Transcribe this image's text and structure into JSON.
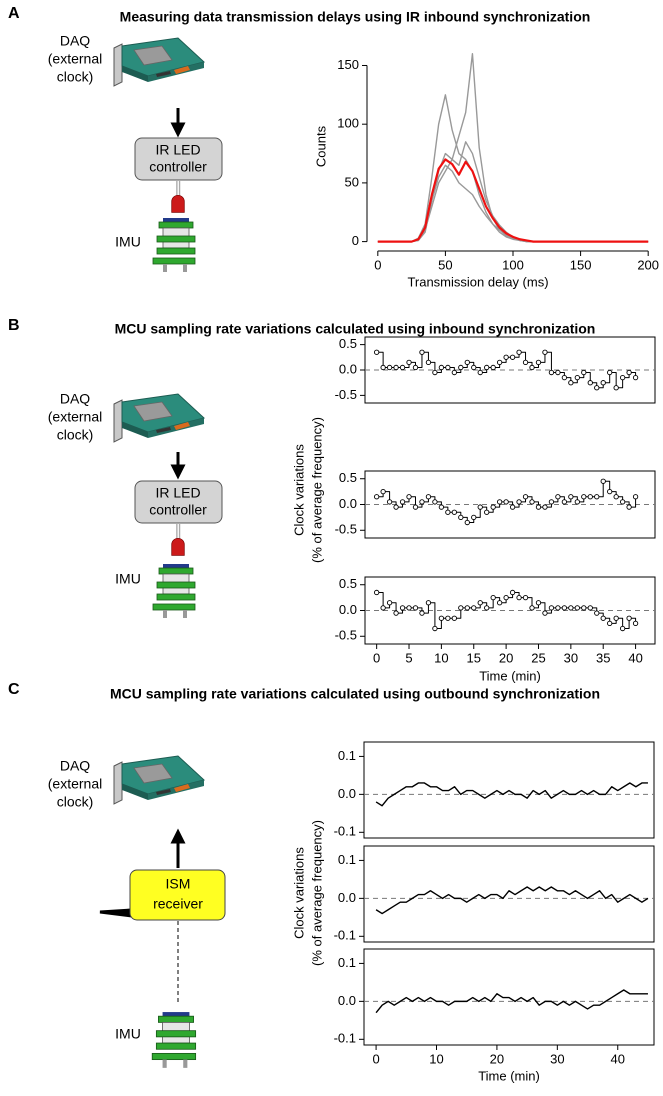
{
  "panels": [
    {
      "letter": "A",
      "title": "Measuring data transmission delays using IR inbound synchronization",
      "daq_lines": [
        "DAQ",
        "(external",
        "clock)"
      ],
      "device_lines": [
        "IR LED",
        "controller"
      ],
      "imu": "IMU"
    },
    {
      "letter": "B",
      "title": "MCU sampling rate variations calculated using inbound synchronization",
      "daq_lines": [
        "DAQ",
        "(external",
        "clock)"
      ],
      "device_lines": [
        "IR LED",
        "controller"
      ],
      "imu": "IMU",
      "ylabel_lines": [
        "Clock variations",
        "(% of average frequency)"
      ]
    },
    {
      "letter": "C",
      "title": "MCU sampling rate variations calculated using outbound synchronization",
      "daq_lines": [
        "DAQ",
        "(external",
        "clock)"
      ],
      "device_lines": [
        "ISM",
        "receiver"
      ],
      "imu": "IMU",
      "ylabel_lines": [
        "Clock variations",
        "(% of average frequency)"
      ]
    }
  ],
  "chart_data": [
    {
      "type": "line",
      "frame": "axes",
      "xlabel": "Transmission delay (ms)",
      "ylabel": "Counts",
      "x": [
        0,
        5,
        10,
        15,
        20,
        25,
        30,
        35,
        40,
        45,
        50,
        55,
        60,
        65,
        70,
        75,
        80,
        85,
        90,
        95,
        100,
        105,
        110,
        115,
        120,
        125,
        130,
        135,
        140,
        145,
        150,
        155,
        160,
        165,
        170,
        175,
        180,
        185,
        190,
        195,
        200
      ],
      "xlim": [
        -8,
        208
      ],
      "ylim": [
        -8,
        170
      ],
      "xticks": [
        0,
        50,
        100,
        150,
        200
      ],
      "yticks": [
        0,
        50,
        100,
        150
      ],
      "series": [
        {
          "color": "#999999",
          "values": [
            0,
            0,
            0,
            0,
            0,
            0,
            1,
            8,
            35,
            60,
            75,
            70,
            90,
            110,
            160,
            80,
            40,
            20,
            10,
            5,
            3,
            1,
            0,
            0,
            0,
            0,
            0,
            0,
            0,
            0,
            0,
            0,
            0,
            0,
            0,
            0,
            0,
            0,
            0,
            0,
            0
          ]
        },
        {
          "color": "#999999",
          "values": [
            0,
            0,
            0,
            0,
            0,
            0,
            3,
            15,
            55,
            100,
            125,
            95,
            75,
            70,
            60,
            40,
            25,
            15,
            8,
            4,
            2,
            1,
            0,
            0,
            0,
            0,
            0,
            0,
            0,
            0,
            0,
            0,
            0,
            0,
            0,
            0,
            0,
            0,
            0,
            0,
            0
          ]
        },
        {
          "color": "#999999",
          "values": [
            0,
            0,
            0,
            0,
            0,
            0,
            1,
            10,
            30,
            50,
            60,
            70,
            65,
            85,
            75,
            55,
            35,
            22,
            14,
            8,
            4,
            2,
            0,
            0,
            0,
            0,
            0,
            0,
            0,
            0,
            0,
            0,
            0,
            0,
            0,
            0,
            0,
            0,
            0,
            0,
            0
          ]
        },
        {
          "color": "#999999",
          "values": [
            0,
            0,
            0,
            0,
            0,
            0,
            2,
            10,
            35,
            55,
            65,
            60,
            50,
            45,
            40,
            30,
            22,
            15,
            10,
            6,
            3,
            1,
            0,
            0,
            0,
            0,
            0,
            0,
            0,
            0,
            0,
            0,
            0,
            0,
            0,
            0,
            0,
            0,
            0,
            0,
            0
          ]
        },
        {
          "color": "#ee1111",
          "values": [
            0,
            0,
            0,
            0,
            0,
            0,
            2,
            12,
            40,
            62,
            70,
            66,
            57,
            68,
            60,
            45,
            30,
            20,
            12,
            7,
            4,
            2,
            1,
            0,
            0,
            0,
            0,
            0,
            0,
            0,
            0,
            0,
            0,
            0,
            0,
            0,
            0,
            0,
            0,
            0,
            0
          ]
        }
      ]
    },
    {
      "type": "step",
      "frame": "box",
      "markers": true,
      "hline": 0,
      "x": [
        0,
        1,
        2,
        3,
        4,
        5,
        6,
        7,
        8,
        9,
        10,
        11,
        12,
        13,
        14,
        15,
        16,
        17,
        18,
        19,
        20,
        21,
        22,
        23,
        24,
        25,
        26,
        27,
        28,
        29,
        30,
        31,
        32,
        33,
        34,
        35,
        36,
        37,
        38,
        39,
        40
      ],
      "xlim": [
        -1.8,
        43
      ],
      "ylim": [
        -0.65,
        0.65
      ],
      "yticks": [
        -0.5,
        {
          "value": 0,
          "label": "0.0"
        },
        0.5
      ],
      "series": [
        {
          "color": "#000000",
          "values": [
            0.35,
            0.05,
            0.05,
            0.05,
            0.05,
            0.15,
            0.05,
            0.35,
            0.15,
            -0.05,
            0.05,
            0.05,
            -0.05,
            0.05,
            0.15,
            0.05,
            -0.05,
            0.05,
            0.05,
            0.15,
            0.25,
            0.25,
            0.35,
            0.15,
            0.05,
            0.15,
            0.35,
            -0.05,
            -0.05,
            -0.15,
            -0.25,
            -0.15,
            -0.05,
            -0.25,
            -0.35,
            -0.25,
            -0.05,
            -0.35,
            -0.15,
            -0.05,
            -0.15
          ]
        }
      ]
    },
    {
      "type": "step",
      "frame": "box",
      "markers": true,
      "hline": 0,
      "x": [
        0,
        1,
        2,
        3,
        4,
        5,
        6,
        7,
        8,
        9,
        10,
        11,
        12,
        13,
        14,
        15,
        16,
        17,
        18,
        19,
        20,
        21,
        22,
        23,
        24,
        25,
        26,
        27,
        28,
        29,
        30,
        31,
        32,
        33,
        34,
        35,
        36,
        37,
        38,
        39,
        40
      ],
      "xlim": [
        -1.8,
        43
      ],
      "ylim": [
        -0.65,
        0.65
      ],
      "yticks": [
        -0.5,
        {
          "value": 0,
          "label": "0.0"
        },
        0.5
      ],
      "series": [
        {
          "color": "#000000",
          "values": [
            0.15,
            0.25,
            0.05,
            -0.05,
            0.05,
            0.15,
            -0.05,
            0.05,
            0.15,
            0.05,
            -0.05,
            -0.15,
            -0.15,
            -0.25,
            -0.35,
            -0.25,
            -0.05,
            -0.15,
            -0.05,
            0.05,
            0.05,
            -0.05,
            0.05,
            0.15,
            0.05,
            -0.05,
            -0.05,
            0.05,
            0.15,
            0.05,
            0.15,
            0.05,
            0.15,
            0.15,
            0.15,
            0.45,
            0.25,
            0.15,
            0.05,
            -0.05,
            0.15
          ]
        }
      ]
    },
    {
      "type": "step",
      "frame": "box",
      "markers": true,
      "hline": 0,
      "xlabel": "Time (min)",
      "x": [
        0,
        1,
        2,
        3,
        4,
        5,
        6,
        7,
        8,
        9,
        10,
        11,
        12,
        13,
        14,
        15,
        16,
        17,
        18,
        19,
        20,
        21,
        22,
        23,
        24,
        25,
        26,
        27,
        28,
        29,
        30,
        31,
        32,
        33,
        34,
        35,
        36,
        37,
        38,
        39,
        40
      ],
      "xlim": [
        -1.8,
        43
      ],
      "ylim": [
        -0.65,
        0.65
      ],
      "xticks": [
        0,
        5,
        10,
        15,
        20,
        25,
        30,
        35,
        40
      ],
      "yticks": [
        -0.5,
        {
          "value": 0,
          "label": "0.0"
        },
        0.5
      ],
      "series": [
        {
          "color": "#000000",
          "values": [
            0.35,
            0.05,
            0.15,
            -0.05,
            0.05,
            0.05,
            0.05,
            -0.05,
            0.15,
            -0.35,
            -0.15,
            -0.15,
            -0.15,
            0.05,
            0.05,
            0.05,
            0.15,
            0.05,
            0.25,
            0.15,
            0.25,
            0.35,
            0.25,
            0.25,
            0.05,
            0.15,
            -0.05,
            0.05,
            0.05,
            0.05,
            0.05,
            0.05,
            0.05,
            0.05,
            -0.05,
            -0.15,
            -0.25,
            -0.15,
            -0.35,
            -0.15,
            -0.25
          ]
        }
      ]
    },
    {
      "type": "line",
      "frame": "box",
      "hline": 0,
      "x": [
        0,
        1,
        2,
        3,
        4,
        5,
        6,
        7,
        8,
        9,
        10,
        11,
        12,
        13,
        14,
        15,
        16,
        17,
        18,
        19,
        20,
        21,
        22,
        23,
        24,
        25,
        26,
        27,
        28,
        29,
        30,
        31,
        32,
        33,
        34,
        35,
        36,
        37,
        38,
        39,
        40,
        41,
        42,
        43,
        44,
        45
      ],
      "xlim": [
        -2,
        46
      ],
      "ylim": [
        -0.115,
        0.138
      ],
      "yticks": [
        -0.1,
        {
          "value": 0,
          "label": "0.0"
        },
        0.1
      ],
      "series": [
        {
          "color": "#000000",
          "values": [
            -0.02,
            -0.03,
            -0.01,
            0.0,
            0.01,
            0.02,
            0.02,
            0.03,
            0.03,
            0.02,
            0.02,
            0.01,
            0.01,
            0.02,
            0.0,
            0.01,
            0.01,
            0.0,
            -0.01,
            0.0,
            0.01,
            0.0,
            0.01,
            0.0,
            0.0,
            -0.01,
            0.01,
            0.0,
            0.01,
            -0.01,
            0.0,
            0.01,
            0.0,
            0.0,
            0.01,
            0.0,
            0.01,
            0.0,
            0.0,
            0.02,
            0.01,
            0.02,
            0.03,
            0.02,
            0.03,
            0.03
          ]
        }
      ]
    },
    {
      "type": "line",
      "frame": "box",
      "hline": 0,
      "x": [
        0,
        1,
        2,
        3,
        4,
        5,
        6,
        7,
        8,
        9,
        10,
        11,
        12,
        13,
        14,
        15,
        16,
        17,
        18,
        19,
        20,
        21,
        22,
        23,
        24,
        25,
        26,
        27,
        28,
        29,
        30,
        31,
        32,
        33,
        34,
        35,
        36,
        37,
        38,
        39,
        40,
        41,
        42,
        43,
        44,
        45
      ],
      "xlim": [
        -2,
        46
      ],
      "ylim": [
        -0.115,
        0.138
      ],
      "yticks": [
        -0.1,
        {
          "value": 0,
          "label": "0.0"
        },
        0.1
      ],
      "series": [
        {
          "color": "#000000",
          "values": [
            -0.03,
            -0.04,
            -0.03,
            -0.02,
            -0.01,
            -0.01,
            0.0,
            0.01,
            0.01,
            0.02,
            0.01,
            0.0,
            0.01,
            0.0,
            0.0,
            -0.01,
            0.0,
            0.01,
            0.0,
            0.01,
            0.01,
            0.0,
            0.02,
            0.01,
            0.02,
            0.03,
            0.02,
            0.03,
            0.02,
            0.03,
            0.02,
            0.02,
            0.01,
            0.02,
            0.01,
            0.0,
            0.01,
            0.02,
            0.0,
            0.01,
            -0.01,
            0.0,
            0.01,
            0.0,
            -0.01,
            0.0
          ]
        }
      ]
    },
    {
      "type": "line",
      "frame": "box",
      "hline": 0,
      "xlabel": "Time (min)",
      "x": [
        0,
        1,
        2,
        3,
        4,
        5,
        6,
        7,
        8,
        9,
        10,
        11,
        12,
        13,
        14,
        15,
        16,
        17,
        18,
        19,
        20,
        21,
        22,
        23,
        24,
        25,
        26,
        27,
        28,
        29,
        30,
        31,
        32,
        33,
        34,
        35,
        36,
        37,
        38,
        39,
        40,
        41,
        42,
        43,
        44,
        45
      ],
      "xlim": [
        -2,
        46
      ],
      "ylim": [
        -0.115,
        0.138
      ],
      "xticks": [
        0,
        10,
        20,
        30,
        40
      ],
      "yticks": [
        -0.1,
        {
          "value": 0,
          "label": "0.0"
        },
        0.1
      ],
      "series": [
        {
          "color": "#000000",
          "values": [
            -0.03,
            -0.01,
            0.0,
            -0.01,
            0.0,
            0.01,
            0.0,
            0.01,
            0.0,
            0.01,
            0.0,
            0.0,
            -0.01,
            0.0,
            0.0,
            0.0,
            0.01,
            0.0,
            0.01,
            0.0,
            0.02,
            0.01,
            0.01,
            0.0,
            0.01,
            0.0,
            0.01,
            -0.01,
            0.0,
            0.0,
            -0.01,
            0.0,
            -0.01,
            0.0,
            -0.01,
            -0.02,
            -0.01,
            -0.01,
            0.0,
            0.01,
            0.02,
            0.03,
            0.02,
            0.02,
            0.02,
            0.02
          ]
        }
      ]
    }
  ]
}
